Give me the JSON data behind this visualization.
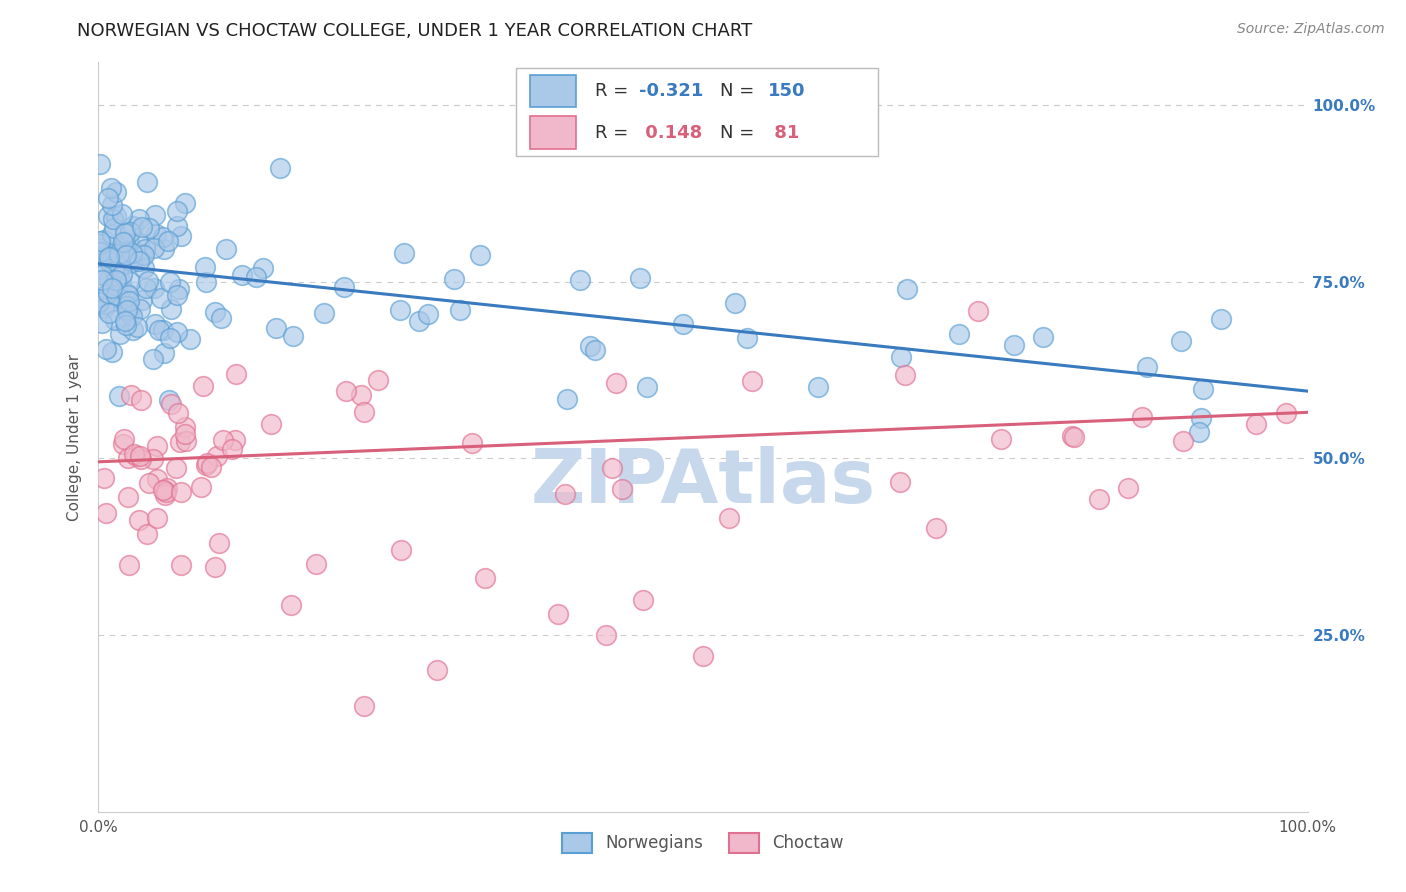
{
  "title": "NORWEGIAN VS CHOCTAW COLLEGE, UNDER 1 YEAR CORRELATION CHART",
  "source": "Source: ZipAtlas.com",
  "ylabel": "College, Under 1 year",
  "ylabel_ticks": [
    "25.0%",
    "50.0%",
    "75.0%",
    "100.0%"
  ],
  "legend_labels_bottom": [
    "Norwegians",
    "Choctaw"
  ],
  "norwegian_line_color": "#3a7abf",
  "choctaw_line_color": "#d9607a",
  "norwegian_scatter_facecolor": "#aac8e8",
  "norwegian_scatter_edgecolor": "#5a9fd4",
  "choctaw_scatter_facecolor": "#f0b8ca",
  "choctaw_scatter_edgecolor": "#e07090",
  "norwegian_line_start_y": 0.775,
  "norwegian_line_end_y": 0.595,
  "choctaw_line_start_y": 0.495,
  "choctaw_line_end_y": 0.565,
  "background_color": "#ffffff",
  "grid_color": "#cccccc",
  "watermark_text": "ZIPAtlas",
  "watermark_color": "#c8d8ec",
  "title_fontsize": 13,
  "source_fontsize": 10,
  "axis_label_fontsize": 11,
  "tick_fontsize": 11,
  "xlim": [
    0.0,
    1.0
  ],
  "ylim": [
    0.0,
    1.06
  ]
}
